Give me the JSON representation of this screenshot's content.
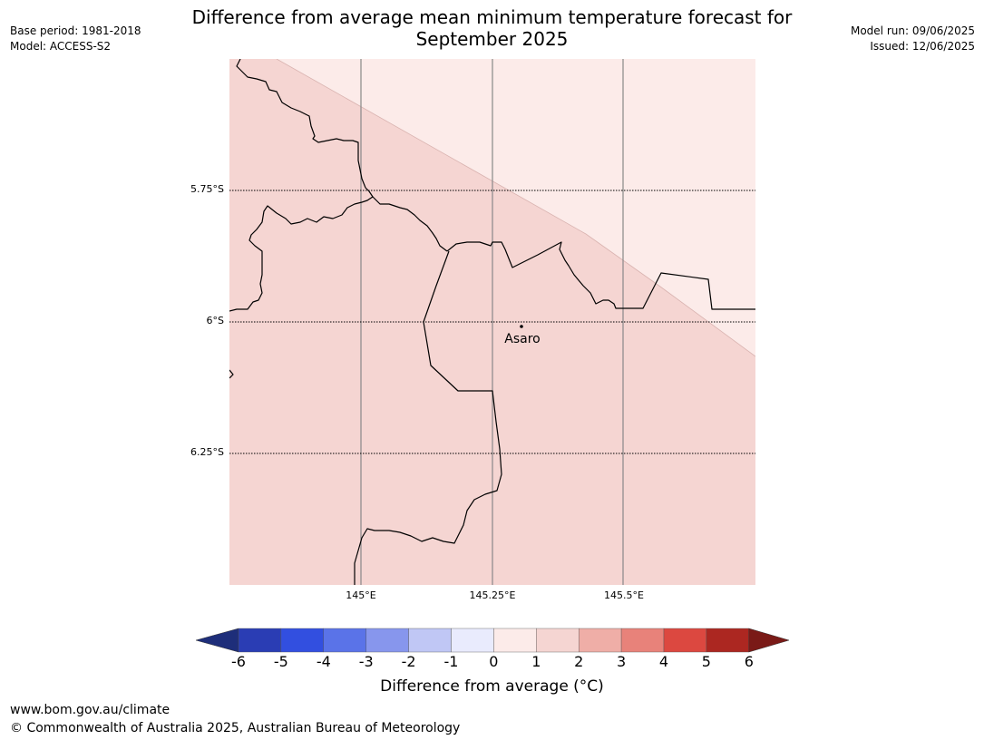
{
  "title_line1": "Difference from average mean minimum temperature forecast for",
  "title_line2": "September 2025",
  "meta_left": {
    "base_period": "Base period: 1981-2018",
    "model": "Model: ACCESS-S2"
  },
  "meta_right": {
    "model_run": "Model run: 09/06/2025",
    "issued": "Issued: 12/06/2025"
  },
  "map": {
    "lat_labels": [
      "5.75°S",
      "6°S",
      "6.25°S"
    ],
    "lon_labels": [
      "145°E",
      "145.25°E",
      "145.5°E"
    ],
    "place": {
      "name": "Asaro"
    },
    "colors": {
      "zone_0_1": "#fcebe9",
      "zone_1_2": "#f5d5d2"
    }
  },
  "colorbar": {
    "ticks": [
      "-6",
      "-5",
      "-4",
      "-3",
      "-2",
      "-1",
      "0",
      "1",
      "2",
      "3",
      "4",
      "5",
      "6"
    ],
    "colors": [
      "#1e2e7a",
      "#2a3db4",
      "#324fe0",
      "#5a73e8",
      "#8796ed",
      "#c0c7f5",
      "#e9ebfd",
      "#fcebe9",
      "#f5d5d2",
      "#efaea7",
      "#e8827a",
      "#dc4840",
      "#ac2721",
      "#7a1a17"
    ],
    "label": "Difference from average (°C)"
  },
  "footer": {
    "url": "www.bom.gov.au/climate",
    "copyright": "© Commonwealth of Australia 2025, Australian Bureau of Meteorology"
  }
}
